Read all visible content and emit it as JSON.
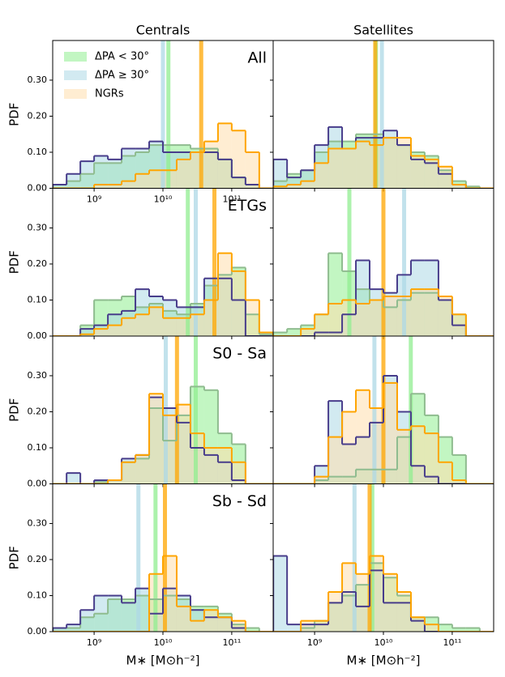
{
  "chart_data": [
    {
      "type": "histogram",
      "title": "Centrals",
      "label": "All",
      "ylabel": "PDF",
      "log_x": true,
      "bins": [
        251200000.0,
        398100000.0,
        631000000.0,
        1000000000.0,
        1585000000.0,
        2512000000.0,
        3981000000.0,
        6310000000.0,
        10000000000.0,
        15850000000.0,
        25120000000.0,
        39810000000.0,
        63100000000.0,
        100000000000.0,
        158500000000.0,
        251200000000.0,
        398100000000.0
      ],
      "xlim": [
        250000000.0,
        400000000000.0
      ],
      "ylim": [
        0,
        0.41
      ],
      "xticks": [
        {
          "value": 1000000000.0,
          "label": "10⁹"
        },
        {
          "value": 10000000000.0,
          "label": "10¹⁰"
        },
        {
          "value": 100000000000.0,
          "label": "10¹¹"
        }
      ],
      "yticks": [
        {
          "value": 0,
          "label": "0.00"
        },
        {
          "value": 0.1,
          "label": "0.10"
        },
        {
          "value": 0.2,
          "label": "0.20"
        },
        {
          "value": 0.3,
          "label": "0.30"
        }
      ],
      "legend": "upper left",
      "series": [
        {
          "name": "ΔPA < 30°",
          "color": "#8fbc8f",
          "fill": "#90ee90",
          "median_color": "#90ee90",
          "median": 12000000000.0,
          "values": [
            0.01,
            0.02,
            0.04,
            0.07,
            0.07,
            0.09,
            0.1,
            0.12,
            0.12,
            0.12,
            0.11,
            0.11,
            0.08,
            0.03,
            0.01,
            0
          ]
        },
        {
          "name": "ΔPA ≥ 30°",
          "color": "#483d8b",
          "fill": "#add8e6",
          "median_color": "#add8e6",
          "median": 10000000000.0,
          "values": [
            0.01,
            0.04,
            0.075,
            0.09,
            0.08,
            0.11,
            0.11,
            0.13,
            0.1,
            0.1,
            0.1,
            0.1,
            0.08,
            0.03,
            0.01,
            0
          ]
        },
        {
          "name": "NGRs",
          "color": "#ffa500",
          "fill": "#ffdead",
          "median_color": "#ffa500",
          "median": 36000000000.0,
          "values": [
            0,
            0,
            0,
            0.01,
            0.01,
            0.02,
            0.04,
            0.05,
            0.05,
            0.08,
            0.1,
            0.13,
            0.18,
            0.16,
            0.1,
            0
          ]
        }
      ]
    },
    {
      "type": "histogram",
      "title": "Satellites",
      "log_x": true,
      "bins": [
        251200000.0,
        398100000.0,
        631000000.0,
        1000000000.0,
        1585000000.0,
        2512000000.0,
        3981000000.0,
        6310000000.0,
        10000000000.0,
        15850000000.0,
        25120000000.0,
        39810000000.0,
        63100000000.0,
        100000000000.0,
        158500000000.0,
        251200000000.0,
        398100000000.0
      ],
      "xlim": [
        250000000.0,
        400000000000.0
      ],
      "ylim": [
        0,
        0.41
      ],
      "xticks": [
        1000000000.0,
        10000000000.0,
        100000000000.0
      ],
      "yticks": [
        0,
        0.1,
        0.2,
        0.3
      ],
      "series": [
        {
          "color": "#8fbc8f",
          "fill": "#90ee90",
          "median_color": "#90ee90",
          "median": 7800000000.0,
          "values": [
            0.02,
            0.04,
            0.05,
            0.1,
            0.13,
            0.13,
            0.15,
            0.15,
            0.14,
            0.12,
            0.1,
            0.09,
            0.05,
            0.02,
            0.005,
            0
          ]
        },
        {
          "color": "#483d8b",
          "fill": "#add8e6",
          "median_color": "#add8e6",
          "median": 9500000000.0,
          "values": [
            0.08,
            0.03,
            0.05,
            0.12,
            0.17,
            0.11,
            0.14,
            0.14,
            0.16,
            0.12,
            0.08,
            0.07,
            0.04,
            0.01,
            0,
            0
          ]
        },
        {
          "color": "#ffa500",
          "fill": "#ffdead",
          "median_color": "#ffa500",
          "median": 7600000000.0,
          "values": [
            0.005,
            0.01,
            0.02,
            0.07,
            0.11,
            0.11,
            0.13,
            0.12,
            0.14,
            0.14,
            0.09,
            0.08,
            0.06,
            0.01,
            0,
            0
          ]
        }
      ]
    },
    {
      "type": "histogram",
      "label": "ETGs",
      "ylabel": "PDF",
      "log_x": true,
      "bins": [
        251200000.0,
        398100000.0,
        631000000.0,
        1000000000.0,
        1585000000.0,
        2512000000.0,
        3981000000.0,
        6310000000.0,
        10000000000.0,
        15850000000.0,
        25120000000.0,
        39810000000.0,
        63100000000.0,
        100000000000.0,
        158500000000.0,
        251200000000.0,
        398100000000.0
      ],
      "xlim": [
        250000000.0,
        400000000000.0
      ],
      "ylim": [
        0,
        0.41
      ],
      "xticks": [
        1000000000.0,
        10000000000.0,
        100000000000.0
      ],
      "yticks": [
        {
          "value": 0,
          "label": "0.00"
        },
        {
          "value": 0.1,
          "label": "0.10"
        },
        {
          "value": 0.2,
          "label": "0.20"
        },
        {
          "value": 0.3,
          "label": "0.30"
        }
      ],
      "series": [
        {
          "color": "#8fbc8f",
          "fill": "#90ee90",
          "median_color": "#90ee90",
          "median": 23000000000.0,
          "values": [
            0,
            0,
            0.03,
            0.1,
            0.1,
            0.11,
            0.08,
            0.09,
            0.07,
            0.06,
            0.09,
            0.14,
            0.17,
            0.19,
            0.06,
            0.005
          ]
        },
        {
          "color": "#483d8b",
          "fill": "#add8e6",
          "median_color": "#add8e6",
          "median": 30000000000.0,
          "values": [
            0,
            0,
            0.02,
            0.03,
            0.06,
            0.07,
            0.13,
            0.11,
            0.1,
            0.08,
            0.08,
            0.16,
            0.16,
            0.1,
            0,
            0
          ]
        },
        {
          "color": "#ffa500",
          "fill": "#ffdead",
          "median_color": "#ffa500",
          "median": 56000000000.0,
          "values": [
            0,
            0,
            0.005,
            0.02,
            0.03,
            0.05,
            0.06,
            0.08,
            0.05,
            0.05,
            0.06,
            0.1,
            0.23,
            0.18,
            0.1,
            0.01
          ]
        }
      ]
    },
    {
      "type": "histogram",
      "log_x": true,
      "bins": [
        251200000.0,
        398100000.0,
        631000000.0,
        1000000000.0,
        1585000000.0,
        2512000000.0,
        3981000000.0,
        6310000000.0,
        10000000000.0,
        15850000000.0,
        25120000000.0,
        39810000000.0,
        63100000000.0,
        100000000000.0,
        158500000000.0,
        251200000000.0,
        398100000000.0
      ],
      "xlim": [
        250000000.0,
        400000000000.0
      ],
      "ylim": [
        0,
        0.41
      ],
      "xticks": [
        1000000000.0,
        10000000000.0,
        100000000000.0
      ],
      "yticks": [
        0,
        0.1,
        0.2,
        0.3
      ],
      "series": [
        {
          "color": "#8fbc8f",
          "fill": "#90ee90",
          "median_color": "#90ee90",
          "median": 3200000000.0,
          "values": [
            0.01,
            0.02,
            0.03,
            0.06,
            0.23,
            0.18,
            0.13,
            0.1,
            0.08,
            0.1,
            0.12,
            0.12,
            0.1,
            0.06,
            0,
            0
          ]
        },
        {
          "color": "#483d8b",
          "fill": "#add8e6",
          "median_color": "#add8e6",
          "median": 20000000000.0,
          "values": [
            0,
            0,
            0,
            0.01,
            0.01,
            0.06,
            0.21,
            0.13,
            0.12,
            0.17,
            0.21,
            0.21,
            0.1,
            0.03,
            0,
            0
          ]
        },
        {
          "color": "#ffa500",
          "fill": "#ffdead",
          "median_color": "#ffa500",
          "median": 10000000000.0,
          "values": [
            0,
            0,
            0.02,
            0.06,
            0.09,
            0.1,
            0.09,
            0.1,
            0.11,
            0.11,
            0.13,
            0.13,
            0.11,
            0.06,
            0,
            0
          ]
        }
      ]
    },
    {
      "type": "histogram",
      "label": "S0 - Sa",
      "ylabel": "PDF",
      "log_x": true,
      "bins": [
        251200000.0,
        398100000.0,
        631000000.0,
        1000000000.0,
        1585000000.0,
        2512000000.0,
        3981000000.0,
        6310000000.0,
        10000000000.0,
        15850000000.0,
        25120000000.0,
        39810000000.0,
        63100000000.0,
        100000000000.0,
        158500000000.0,
        251200000000.0,
        398100000000.0
      ],
      "xlim": [
        250000000.0,
        400000000000.0
      ],
      "ylim": [
        0,
        0.41
      ],
      "xticks": [
        1000000000.0,
        10000000000.0,
        100000000000.0
      ],
      "yticks": [
        {
          "value": 0,
          "label": "0.00"
        },
        {
          "value": 0.1,
          "label": "0.10"
        },
        {
          "value": 0.2,
          "label": "0.20"
        },
        {
          "value": 0.3,
          "label": "0.30"
        }
      ],
      "series": [
        {
          "color": "#8fbc8f",
          "fill": "#90ee90",
          "median_color": "#90ee90",
          "median": 30000000000.0,
          "values": [
            0,
            0,
            0,
            0.005,
            0.01,
            0.06,
            0.07,
            0.21,
            0.12,
            0.19,
            0.27,
            0.26,
            0.14,
            0.11,
            0,
            0
          ]
        },
        {
          "color": "#483d8b",
          "fill": "#add8e6",
          "median_color": "#add8e6",
          "median": 11000000000.0,
          "values": [
            0,
            0.03,
            0,
            0.01,
            0.01,
            0.07,
            0.08,
            0.24,
            0.21,
            0.17,
            0.1,
            0.08,
            0.06,
            0.01,
            0,
            0
          ]
        },
        {
          "color": "#ffa500",
          "fill": "#ffdead",
          "median_color": "#ffa500",
          "median": 16000000000.0,
          "values": [
            0,
            0,
            0,
            0,
            0.01,
            0.06,
            0.08,
            0.25,
            0.19,
            0.22,
            0.14,
            0.1,
            0.1,
            0.06,
            0,
            0
          ]
        }
      ]
    },
    {
      "type": "histogram",
      "log_x": true,
      "bins": [
        251200000.0,
        398100000.0,
        631000000.0,
        1000000000.0,
        1585000000.0,
        2512000000.0,
        3981000000.0,
        6310000000.0,
        10000000000.0,
        15850000000.0,
        25120000000.0,
        39810000000.0,
        63100000000.0,
        100000000000.0,
        158500000000.0,
        251200000000.0,
        398100000000.0
      ],
      "xlim": [
        250000000.0,
        400000000000.0
      ],
      "ylim": [
        0,
        0.41
      ],
      "xticks": [
        1000000000.0,
        10000000000.0,
        100000000000.0
      ],
      "yticks": [
        0,
        0.1,
        0.2,
        0.3
      ],
      "series": [
        {
          "color": "#8fbc8f",
          "fill": "#90ee90",
          "median_color": "#90ee90",
          "median": 25000000000.0,
          "values": [
            0,
            0,
            0,
            0.01,
            0.02,
            0.02,
            0.04,
            0.04,
            0.04,
            0.13,
            0.25,
            0.19,
            0.13,
            0.08,
            0,
            0
          ]
        },
        {
          "color": "#483d8b",
          "fill": "#add8e6",
          "median_color": "#add8e6",
          "median": 7400000000.0,
          "values": [
            0,
            0,
            0,
            0.05,
            0.23,
            0.11,
            0.13,
            0.17,
            0.3,
            0.2,
            0.05,
            0.02,
            0,
            0,
            0,
            0
          ]
        },
        {
          "color": "#ffa500",
          "fill": "#ffdead",
          "median_color": "#ffa500",
          "median": 10000000000.0,
          "values": [
            0,
            0,
            0,
            0.02,
            0.13,
            0.2,
            0.26,
            0.21,
            0.28,
            0.15,
            0.16,
            0.14,
            0.06,
            0.01,
            0,
            0
          ]
        }
      ]
    },
    {
      "type": "histogram",
      "label": "Sb - Sd",
      "ylabel": "PDF",
      "xlabel": "M∗ [M⊙h⁻²]",
      "log_x": true,
      "bins": [
        251200000.0,
        398100000.0,
        631000000.0,
        1000000000.0,
        1585000000.0,
        2512000000.0,
        3981000000.0,
        6310000000.0,
        10000000000.0,
        15850000000.0,
        25120000000.0,
        39810000000.0,
        63100000000.0,
        100000000000.0,
        158500000000.0,
        251200000000.0,
        398100000000.0
      ],
      "xlim": [
        250000000.0,
        400000000000.0
      ],
      "ylim": [
        0,
        0.41
      ],
      "xticks": [
        {
          "value": 1000000000.0,
          "label": "10⁹"
        },
        {
          "value": 10000000000.0,
          "label": "10¹⁰"
        },
        {
          "value": 100000000000.0,
          "label": "10¹¹"
        }
      ],
      "yticks": [
        {
          "value": 0,
          "label": "0.00"
        },
        {
          "value": 0.1,
          "label": "0.10"
        },
        {
          "value": 0.2,
          "label": "0.20"
        },
        {
          "value": 0.3,
          "label": "0.30"
        }
      ],
      "series": [
        {
          "color": "#8fbc8f",
          "fill": "#90ee90",
          "median_color": "#90ee90",
          "median": 7800000000.0,
          "values": [
            0.01,
            0.01,
            0.04,
            0.05,
            0.09,
            0.09,
            0.1,
            0.09,
            0.1,
            0.09,
            0.07,
            0.07,
            0.05,
            0.02,
            0.01,
            0
          ]
        },
        {
          "color": "#483d8b",
          "fill": "#add8e6",
          "median_color": "#add8e6",
          "median": 4400000000.0,
          "values": [
            0.01,
            0.02,
            0.06,
            0.1,
            0.1,
            0.08,
            0.12,
            0.05,
            0.12,
            0.1,
            0.06,
            0.04,
            0.04,
            0.01,
            0,
            0
          ]
        },
        {
          "color": "#ffa500",
          "fill": "#ffdead",
          "median_color": "#ffa500",
          "median": 10700000000.0,
          "values": [
            0,
            0,
            0,
            0,
            0,
            0,
            0,
            0.16,
            0.21,
            0.07,
            0.03,
            0.06,
            0.04,
            0.03,
            0,
            0
          ]
        }
      ]
    },
    {
      "type": "histogram",
      "xlabel": "M∗ [M⊙h⁻²]",
      "log_x": true,
      "bins": [
        251200000.0,
        398100000.0,
        631000000.0,
        1000000000.0,
        1585000000.0,
        2512000000.0,
        3981000000.0,
        6310000000.0,
        10000000000.0,
        15850000000.0,
        25120000000.0,
        39810000000.0,
        63100000000.0,
        100000000000.0,
        158500000000.0,
        251200000000.0,
        398100000000.0
      ],
      "xlim": [
        250000000.0,
        400000000000.0
      ],
      "ylim": [
        0,
        0.41
      ],
      "xticks": [
        {
          "value": 1000000000.0,
          "label": "10⁹"
        },
        {
          "value": 10000000000.0,
          "label": "10¹⁰"
        },
        {
          "value": 100000000000.0,
          "label": "10¹¹"
        }
      ],
      "yticks": [
        0,
        0.1,
        0.2,
        0.3
      ],
      "series": [
        {
          "color": "#8fbc8f",
          "fill": "#90ee90",
          "median_color": "#90ee90",
          "median": 6900000000.0,
          "values": [
            0,
            0,
            0.01,
            0.03,
            0.08,
            0.1,
            0.13,
            0.19,
            0.15,
            0.1,
            0.04,
            0.04,
            0.02,
            0.01,
            0.01,
            0
          ]
        },
        {
          "color": "#483d8b",
          "fill": "#add8e6",
          "median_color": "#add8e6",
          "median": 3800000000.0,
          "values": [
            0.21,
            0.02,
            0.02,
            0.02,
            0.08,
            0.11,
            0.07,
            0.17,
            0.08,
            0.08,
            0.03,
            0,
            0,
            0,
            0,
            0
          ]
        },
        {
          "color": "#ffa500",
          "fill": "#ffdead",
          "median_color": "#ffa500",
          "median": 6300000000.0,
          "values": [
            0,
            0,
            0.03,
            0.03,
            0.11,
            0.19,
            0.16,
            0.21,
            0.16,
            0.11,
            0.04,
            0.02,
            0,
            0,
            0,
            0
          ]
        }
      ]
    }
  ]
}
